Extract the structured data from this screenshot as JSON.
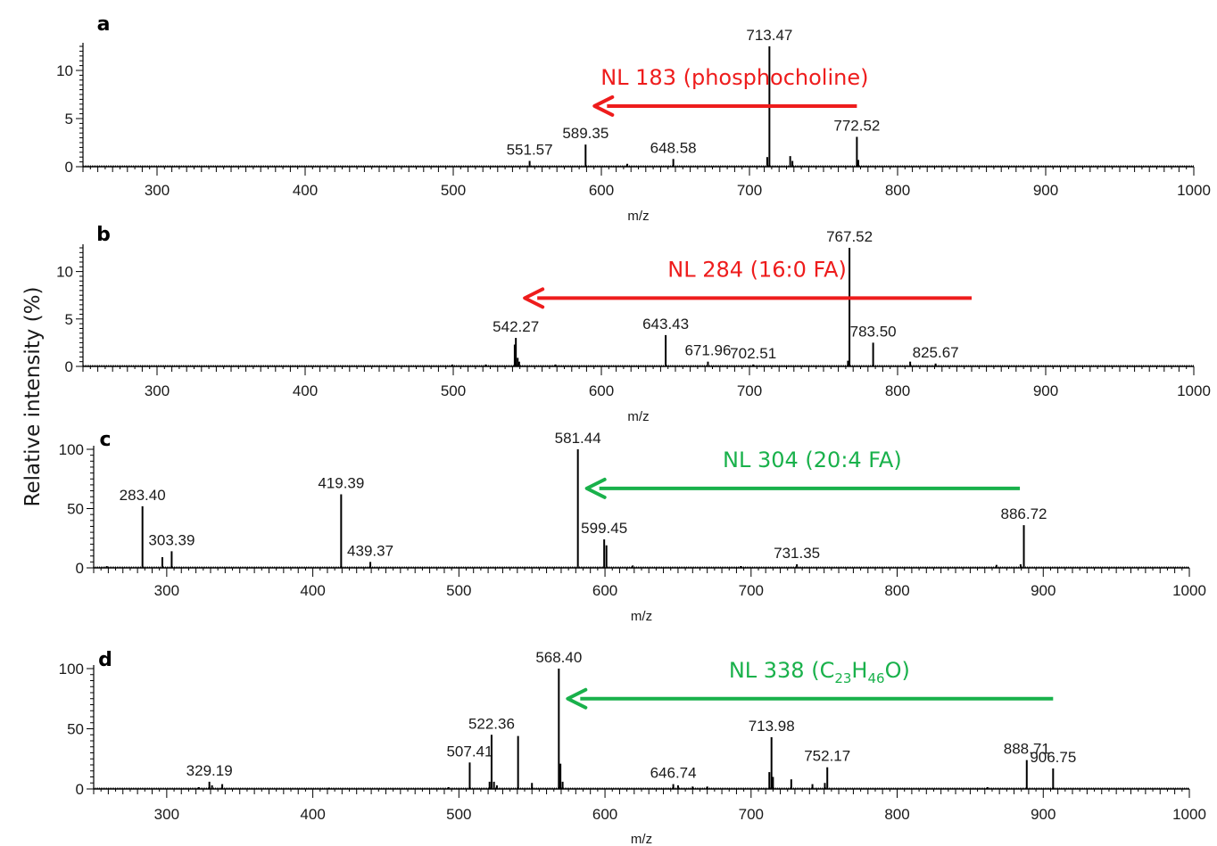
{
  "ylabel": "Relative intensity (%)",
  "colors": {
    "red": "#ee1c1c",
    "green": "#19b14b",
    "axis": "#000000"
  },
  "chart_data": [
    {
      "type": "bar",
      "panel_label": "a",
      "xlabel": "m/z",
      "xlim": [
        250,
        1000
      ],
      "ylim": [
        0,
        12.5
      ],
      "xticks": [
        300,
        400,
        500,
        600,
        700,
        800,
        900,
        1000
      ],
      "yticks": [
        0,
        5,
        10
      ],
      "peaks": [
        {
          "x": 551.57,
          "y": 0.6,
          "label": "551.57"
        },
        {
          "x": 589.35,
          "y": 2.3,
          "label": "589.35"
        },
        {
          "x": 617.5,
          "y": 0.3
        },
        {
          "x": 648.58,
          "y": 0.8,
          "label": "648.58"
        },
        {
          "x": 712.0,
          "y": 1.0
        },
        {
          "x": 713.47,
          "y": 12.5,
          "label": "713.47"
        },
        {
          "x": 727.5,
          "y": 1.1
        },
        {
          "x": 729.0,
          "y": 0.6
        },
        {
          "x": 772.52,
          "y": 3.1,
          "label": "772.52"
        },
        {
          "x": 773.5,
          "y": 0.7
        }
      ],
      "annotation": {
        "text": "NL 183 (phosphocholine)",
        "color": "red",
        "from_x": 772.52,
        "to_x": 589.35,
        "level": 6.3
      }
    },
    {
      "type": "bar",
      "panel_label": "b",
      "xlabel": "m/z",
      "xlim": [
        250,
        1000
      ],
      "ylim": [
        0,
        12.5
      ],
      "xticks": [
        300,
        400,
        500,
        600,
        700,
        800,
        900,
        1000
      ],
      "yticks": [
        0,
        5,
        10
      ],
      "peaks": [
        {
          "x": 499.5,
          "y": 0.2
        },
        {
          "x": 522.0,
          "y": 0.2
        },
        {
          "x": 541.5,
          "y": 2.3
        },
        {
          "x": 542.27,
          "y": 3.0,
          "label": "542.27"
        },
        {
          "x": 543.5,
          "y": 0.9
        },
        {
          "x": 544.5,
          "y": 0.5
        },
        {
          "x": 569.0,
          "y": 0.2
        },
        {
          "x": 643.43,
          "y": 3.3,
          "label": "643.43"
        },
        {
          "x": 671.96,
          "y": 0.5,
          "label": "671.96"
        },
        {
          "x": 702.51,
          "y": 0.2,
          "label": "702.51"
        },
        {
          "x": 766.5,
          "y": 0.6
        },
        {
          "x": 767.52,
          "y": 12.5,
          "label": "767.52"
        },
        {
          "x": 783.5,
          "y": 2.5,
          "label": "783.50"
        },
        {
          "x": 808.5,
          "y": 0.5
        },
        {
          "x": 825.67,
          "y": 0.3,
          "label": "825.67"
        }
      ],
      "annotation": {
        "text": "NL 284 (16:0 FA)",
        "color": "red",
        "from_x": 850,
        "to_x": 542.27,
        "level": 7.2
      }
    },
    {
      "type": "bar",
      "panel_label": "c",
      "xlabel": "m/z",
      "xlim": [
        250,
        1000
      ],
      "ylim": [
        0,
        100
      ],
      "xticks": [
        300,
        400,
        500,
        600,
        700,
        800,
        900,
        1000
      ],
      "yticks": [
        0,
        50,
        100
      ],
      "peaks": [
        {
          "x": 259.0,
          "y": 1.5
        },
        {
          "x": 283.4,
          "y": 52,
          "label": "283.40"
        },
        {
          "x": 297.0,
          "y": 9
        },
        {
          "x": 303.39,
          "y": 14,
          "label": "303.39"
        },
        {
          "x": 419.39,
          "y": 62,
          "label": "419.39"
        },
        {
          "x": 439.37,
          "y": 5,
          "label": "439.37"
        },
        {
          "x": 581.44,
          "y": 100,
          "label": "581.44"
        },
        {
          "x": 599.45,
          "y": 24,
          "label": "599.45"
        },
        {
          "x": 601.0,
          "y": 19
        },
        {
          "x": 619.0,
          "y": 2
        },
        {
          "x": 693.0,
          "y": 1.5
        },
        {
          "x": 731.35,
          "y": 3,
          "label": "731.35"
        },
        {
          "x": 868.0,
          "y": 2.5
        },
        {
          "x": 884.5,
          "y": 3
        },
        {
          "x": 886.72,
          "y": 36,
          "label": "886.72"
        }
      ],
      "annotation": {
        "text": "NL 304 (20:4 FA)",
        "color": "green",
        "from_x": 884,
        "to_x": 581.44,
        "level": 67
      }
    },
    {
      "type": "bar",
      "panel_label": "d",
      "xlabel": "m/z",
      "xlim": [
        250,
        1000
      ],
      "ylim": [
        0,
        100
      ],
      "xticks": [
        300,
        400,
        500,
        600,
        700,
        800,
        900,
        1000
      ],
      "yticks": [
        0,
        50,
        100
      ],
      "peaks": [
        {
          "x": 322.0,
          "y": 1.5
        },
        {
          "x": 329.19,
          "y": 6,
          "label": "329.19"
        },
        {
          "x": 331.0,
          "y": 3
        },
        {
          "x": 338.0,
          "y": 4
        },
        {
          "x": 411.0,
          "y": 1
        },
        {
          "x": 493.0,
          "y": 1.5
        },
        {
          "x": 507.41,
          "y": 22,
          "label": "507.41"
        },
        {
          "x": 521.0,
          "y": 6
        },
        {
          "x": 522.36,
          "y": 45,
          "label": "522.36"
        },
        {
          "x": 524.0,
          "y": 6
        },
        {
          "x": 526.0,
          "y": 3
        },
        {
          "x": 540.5,
          "y": 44
        },
        {
          "x": 550.0,
          "y": 5
        },
        {
          "x": 568.4,
          "y": 100,
          "label": "568.40"
        },
        {
          "x": 569.5,
          "y": 21
        },
        {
          "x": 571.0,
          "y": 6
        },
        {
          "x": 646.74,
          "y": 4,
          "label": "646.74"
        },
        {
          "x": 650.0,
          "y": 3
        },
        {
          "x": 660.0,
          "y": 2
        },
        {
          "x": 670.0,
          "y": 2
        },
        {
          "x": 712.5,
          "y": 14
        },
        {
          "x": 713.98,
          "y": 43,
          "label": "713.98"
        },
        {
          "x": 715.0,
          "y": 10
        },
        {
          "x": 727.5,
          "y": 8
        },
        {
          "x": 742.0,
          "y": 4
        },
        {
          "x": 750.5,
          "y": 5
        },
        {
          "x": 752.17,
          "y": 18,
          "label": "752.17"
        },
        {
          "x": 862.0,
          "y": 1.5
        },
        {
          "x": 888.71,
          "y": 24,
          "label": "888.71"
        },
        {
          "x": 906.75,
          "y": 17,
          "label": "906.75"
        }
      ],
      "annotation": {
        "text_main": "NL 338 (C",
        "sub1": "23",
        "text_mid": "H",
        "sub2": "46",
        "text_end": "O)",
        "color": "green",
        "from_x": 906.75,
        "to_x": 568.4,
        "level": 75
      }
    }
  ]
}
